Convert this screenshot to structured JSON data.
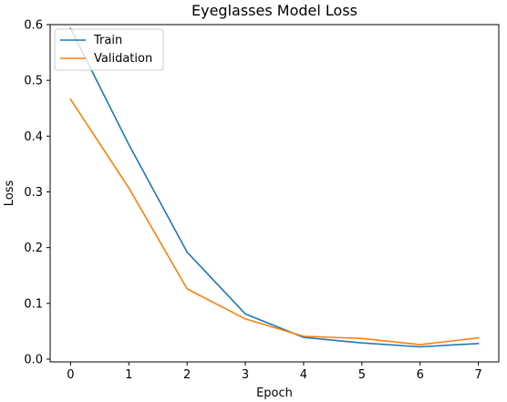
{
  "chart_data": {
    "type": "line",
    "title": "Eyeglasses Model Loss",
    "xlabel": "Epoch",
    "ylabel": "Loss",
    "x": [
      0,
      1,
      2,
      3,
      4,
      5,
      6,
      7
    ],
    "xlim": [
      -0.35,
      7.35
    ],
    "ylim": [
      -0.005,
      0.6
    ],
    "xticks": [
      "0",
      "1",
      "2",
      "3",
      "4",
      "5",
      "6",
      "7"
    ],
    "yticks": [
      "0.0",
      "0.1",
      "0.2",
      "0.3",
      "0.4",
      "0.5",
      "0.6"
    ],
    "grid": false,
    "legend_position": "upper left",
    "series": [
      {
        "name": "Train",
        "color": "#1f77b4",
        "values": [
          0.593,
          0.385,
          0.192,
          0.081,
          0.039,
          0.029,
          0.022,
          0.028
        ]
      },
      {
        "name": "Validation",
        "color": "#ff7f0e",
        "values": [
          0.466,
          0.307,
          0.126,
          0.072,
          0.041,
          0.037,
          0.026,
          0.038
        ]
      }
    ]
  }
}
